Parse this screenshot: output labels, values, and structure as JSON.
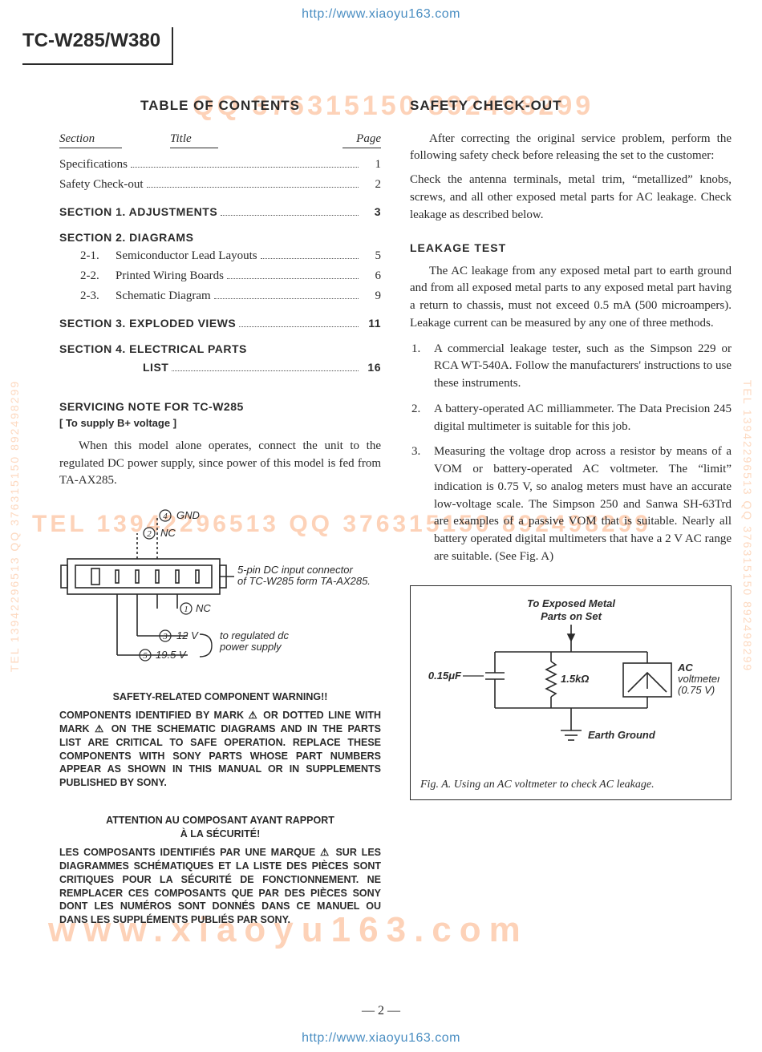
{
  "watermarks": {
    "top_url": "http://www.xiaoyu163.com",
    "bottom_url": "http://www.xiaoyu163.com",
    "side": "TEL 13942296513 QQ 376315150 892498299",
    "orange1": "QQ 376315150   892498299",
    "orange2": "TEL 13942296513 QQ 376315150 892498299",
    "orange3": "www.xiaoyu163.com"
  },
  "model": "TC-W285/W380",
  "left": {
    "toc_title": "TABLE  OF  CONTENTS",
    "head": {
      "section": "Section",
      "title": "Title",
      "page": "Page"
    },
    "rows": [
      {
        "type": "plain",
        "label": "Specifications",
        "page": "1"
      },
      {
        "type": "plain",
        "label": "Safety Check-out",
        "page": "2"
      },
      {
        "type": "bold",
        "label": "SECTION  1.  ADJUSTMENTS",
        "page": "3"
      },
      {
        "type": "boldhead",
        "label": "SECTION  2.  DIAGRAMS"
      },
      {
        "type": "sub",
        "num": "2-1.",
        "label": "Semiconductor Lead Layouts",
        "page": "5"
      },
      {
        "type": "sub",
        "num": "2-2.",
        "label": "Printed Wiring Boards",
        "page": "6"
      },
      {
        "type": "sub",
        "num": "2-3.",
        "label": "Schematic Diagram",
        "page": "9"
      },
      {
        "type": "bold",
        "label": "SECTION  3.  EXPLODED VIEWS",
        "page": "11"
      },
      {
        "type": "boldhead",
        "label": "SECTION  4.  ELECTRICAL  PARTS"
      },
      {
        "type": "cont",
        "label": "LIST",
        "page": "16"
      }
    ],
    "svc_head": "SERVICING  NOTE  FOR  TC-W285",
    "svc_sub": "[ To supply B+ voltage ]",
    "svc_body": "When this model alone operates, connect the unit to the regulated DC power supply, since power of this model is fed from TA-AX285.",
    "diagram": {
      "pins": {
        "p1": "NC",
        "p2": "NC",
        "p3": "12 V",
        "p4": "GND",
        "p5": "19.5 V"
      },
      "note1a": "5-pin DC input connector",
      "note1b": "of TC-W285 form TA-AX285.",
      "note2a": "to regulated dc",
      "note2b": "power supply"
    },
    "warn_title": "SAFETY-RELATED COMPONENT WARNING!!",
    "warn_en": "COMPONENTS IDENTIFIED BY MARK ⚠ OR DOTTED LINE WITH MARK ⚠ ON THE SCHEMATIC DIAGRAMS AND IN THE PARTS LIST ARE CRITICAL TO SAFE OPERATION.  REPLACE THESE COMPONENTS WITH SONY PARTS WHOSE PART NUMBERS APPEAR AS SHOWN IN THIS MANUAL OR IN SUPPLEMENTS PUBLISHED BY SONY.",
    "warn_title_fr1": "ATTENTION AU COMPOSANT AYANT RAPPORT",
    "warn_title_fr2": "À LA SÉCURITÉ!",
    "warn_fr": "LES COMPOSANTS IDENTIFIÉS PAR UNE MARQUE ⚠ SUR LES DIAGRAMMES SCHÉMATIQUES ET LA LISTE DES PIÈCES SONT CRITIQUES POUR LA SÉCURITÉ DE FONCTIONNEMENT.  NE REMPLACER CES COMPOSANTS QUE PAR DES PIÈCES SONY DONT LES NUMÉROS SONT DONNÉS DANS CE MANUEL OU DANS LES SUPPLÉMENTS PUBLIÉS PAR SONY."
  },
  "right": {
    "title": "SAFETY  CHECK-OUT",
    "p1": "After correcting the original service problem, perform the following safety check before releasing the set to the customer:",
    "p2": "Check the antenna terminals, metal trim, “metallized” knobs, screws, and all other exposed metal parts for AC leakage. Check leakage as described below.",
    "leak_title": "LEAKAGE  TEST",
    "leak_p": "The AC leakage from any exposed metal part to earth ground and from all exposed metal parts to any exposed metal part having a return to chassis, must not exceed 0.5 mA (500 microampers). Leakage current can be measured by any one of three methods.",
    "methods": [
      "A commercial leakage tester, such as the Simpson 229 or RCA WT-540A. Follow the manufacturers' instructions to use these instruments.",
      "A battery-operated AC milliammeter. The Data Precision 245 digital multimeter is suitable for this job.",
      "Measuring the voltage drop across a resistor by means of a VOM or battery-operated AC voltmeter. The “limit” indication is 0.75 V, so analog meters must have an accurate low-voltage scale. The Simpson 250 and Sanwa SH-63Trd are examples of a passive VOM that is suitable. Nearly all battery operated digital multimeters that have a 2 V AC range are suitable. (See Fig. A)"
    ],
    "fig": {
      "top_label1": "To Exposed Metal",
      "top_label2": "Parts on Set",
      "cap_label": "0.15μF",
      "res_label": "1.5kΩ",
      "meter1": "AC",
      "meter2": "voltmeter",
      "meter3": "(0.75 V)",
      "gnd": "Earth Ground",
      "caption": "Fig. A.  Using an AC voltmeter to check AC leakage."
    }
  },
  "page_number": "— 2 —",
  "colors": {
    "text": "#2a2a2a",
    "link": "#4a8ec2",
    "wm_orange": "#fdd2b8",
    "background": "#ffffff"
  }
}
